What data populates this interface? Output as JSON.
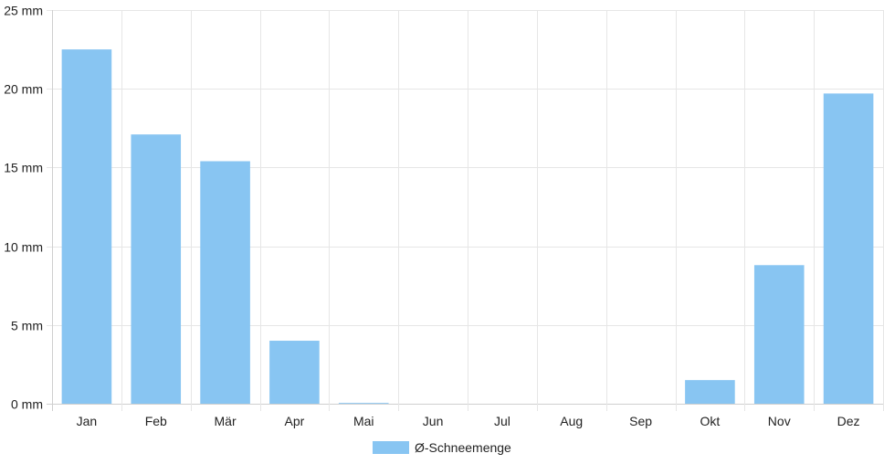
{
  "chart_data": {
    "type": "bar",
    "categories": [
      "Jan",
      "Feb",
      "Mär",
      "Apr",
      "Mai",
      "Jun",
      "Jul",
      "Aug",
      "Sep",
      "Okt",
      "Nov",
      "Dez"
    ],
    "series": [
      {
        "name": "Ø-Schneemenge",
        "color": "#88c5f2",
        "values": [
          22.5,
          17.1,
          15.4,
          4.0,
          0.05,
          0,
          0,
          0,
          0,
          1.5,
          8.8,
          19.7
        ]
      }
    ],
    "y_ticks": [
      "0 mm",
      "5 mm",
      "10 mm",
      "15 mm",
      "20 mm",
      "25 mm"
    ],
    "ylim": [
      0,
      25
    ],
    "grid": true,
    "legend_position": "bottom"
  }
}
